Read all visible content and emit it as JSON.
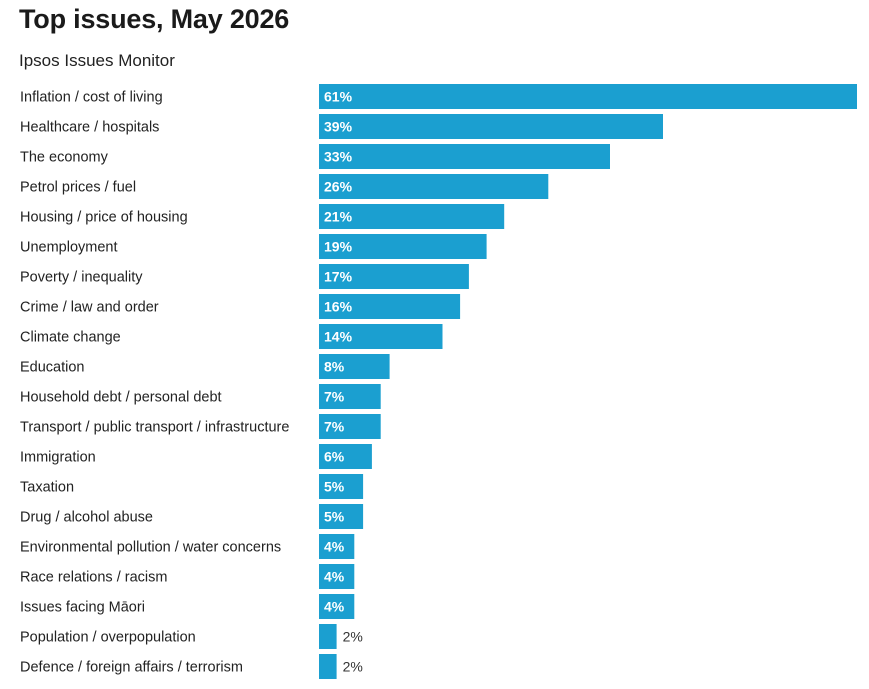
{
  "header": {
    "title": "Top issues, May 2026",
    "subtitle": "Ipsos Issues Monitor"
  },
  "colors": {
    "bar": "#1b9fd0",
    "label_inside": "#ffffff",
    "label_outside": "#333333",
    "category_text": "#222222"
  },
  "chart_data": {
    "type": "bar",
    "orientation": "horizontal",
    "title": "Top issues, May 2026",
    "subtitle": "Ipsos Issues Monitor",
    "value_suffix": "%",
    "xlim": [
      0,
      61
    ],
    "grid": false,
    "legend": "none",
    "categories": [
      "Inflation / cost of living",
      "Healthcare / hospitals",
      "The economy",
      "Petrol prices / fuel",
      "Housing / price of housing",
      "Unemployment",
      "Poverty / inequality",
      "Crime / law and order",
      "Climate change",
      "Education",
      "Household debt / personal debt",
      "Transport / public transport / infrastructure",
      "Immigration",
      "Taxation",
      "Drug / alcohol abuse",
      "Environmental pollution / water concerns",
      "Race relations / racism",
      "Issues facing Māori",
      "Population / overpopulation",
      "Defence / foreign affairs / terrorism"
    ],
    "values": [
      61,
      39,
      33,
      26,
      21,
      19,
      17,
      16,
      14,
      8,
      7,
      7,
      6,
      5,
      5,
      4,
      4,
      4,
      2,
      2
    ],
    "labels": [
      "61%",
      "39%",
      "33%",
      "26%",
      "21%",
      "19%",
      "17%",
      "16%",
      "14%",
      "8%",
      "7%",
      "7%",
      "6%",
      "5%",
      "5%",
      "4%",
      "4%",
      "4%",
      "2%",
      "2%"
    ]
  }
}
